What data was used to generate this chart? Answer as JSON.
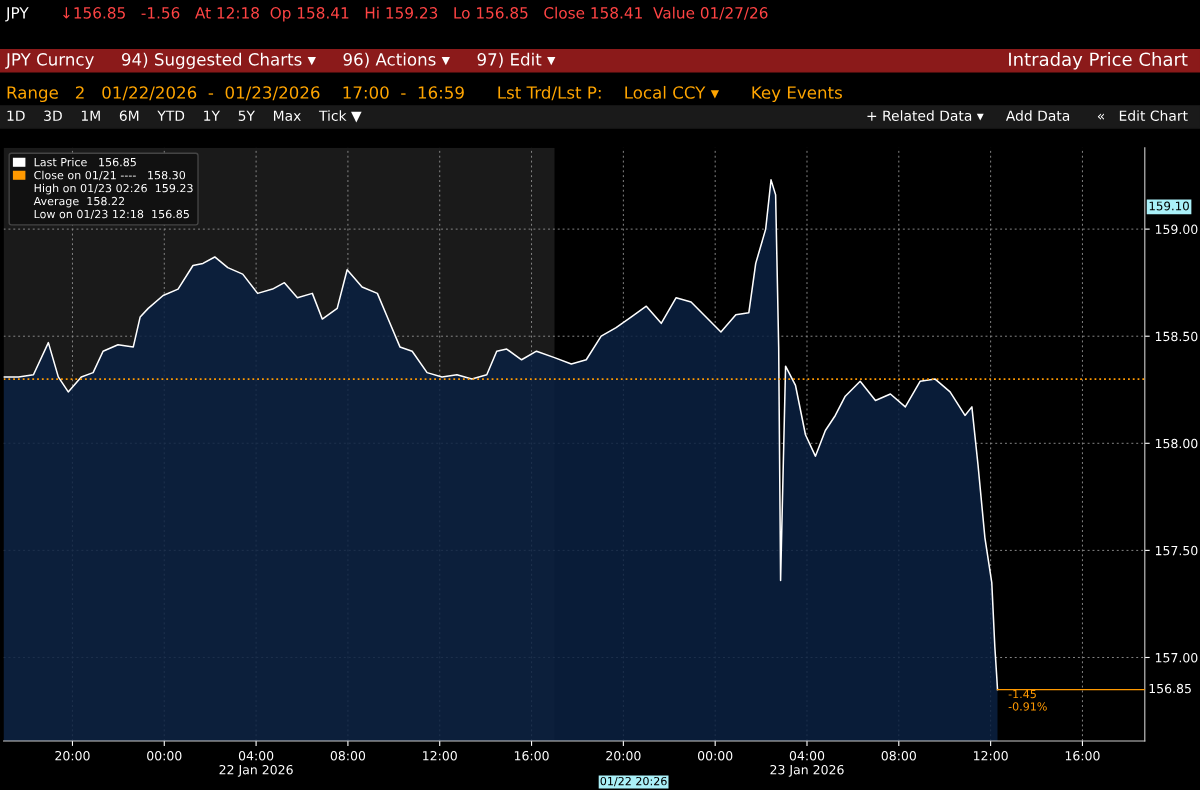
{
  "chart_data": {
    "type": "area",
    "title": "JPY",
    "subtitle": "↓156.85   -1.56   At 12:18  Op 158.41   Hi 159.23   Lo 156.85   Close 158.41  Value 01/27/26",
    "x": [
      "2026-01-21T17:00",
      "2026-01-21T17:39",
      "2026-01-21T18:18",
      "2026-01-21T18:57",
      "2026-01-21T19:23",
      "2026-01-21T19:49",
      "2026-01-21T20:23",
      "2026-01-21T20:54",
      "2026-01-21T21:20",
      "2026-01-21T21:59",
      "2026-01-21T22:39",
      "2026-01-21T22:57",
      "2026-01-21T23:18",
      "2026-01-21T23:57",
      "2026-01-22T00:36",
      "2026-01-22T01:15",
      "2026-01-22T01:41",
      "2026-01-22T02:12",
      "2026-01-22T02:46",
      "2026-01-22T03:25",
      "2026-01-22T04:04",
      "2026-01-22T04:43",
      "2026-01-22T05:14",
      "2026-01-22T05:48",
      "2026-01-22T06:27",
      "2026-01-22T06:53",
      "2026-01-22T07:32",
      "2026-01-22T07:58",
      "2026-01-22T08:37",
      "2026-01-22T09:17",
      "2026-01-22T09:43",
      "2026-01-22T10:16",
      "2026-01-22T10:48",
      "2026-01-22T11:27",
      "2026-01-22T12:06",
      "2026-01-22T12:45",
      "2026-01-22T13:24",
      "2026-01-22T14:03",
      "2026-01-22T14:29",
      "2026-01-22T14:55",
      "2026-01-22T15:34",
      "2026-01-22T16:13",
      "2026-01-22T17:00",
      "2026-01-22T17:44",
      "2026-01-22T18:23",
      "2026-01-22T19:02",
      "2026-01-22T19:41",
      "2026-01-22T20:21",
      "2026-01-22T21:00",
      "2026-01-22T21:39",
      "2026-01-22T22:18",
      "2026-01-22T22:57",
      "2026-01-22T23:36",
      "2026-01-23T00:15",
      "2026-01-23T00:54",
      "2026-01-23T01:28",
      "2026-01-23T01:46",
      "2026-01-23T02:12",
      "2026-01-23T02:26",
      "2026-01-23T02:38",
      "2026-01-23T02:46",
      "2026-01-23T02:51",
      "2026-01-23T03:04",
      "2026-01-23T03:30",
      "2026-01-23T03:56",
      "2026-01-23T04:22",
      "2026-01-23T04:48",
      "2026-01-23T05:14",
      "2026-01-23T05:40",
      "2026-01-23T06:19",
      "2026-01-23T06:59",
      "2026-01-23T07:38",
      "2026-01-23T08:17",
      "2026-01-23T08:56",
      "2026-01-23T09:35",
      "2026-01-23T10:14",
      "2026-01-23T10:53",
      "2026-01-23T11:11",
      "2026-01-23T11:27",
      "2026-01-23T11:45",
      "2026-01-23T12:03",
      "2026-01-23T12:11",
      "2026-01-23T12:16",
      "2026-01-23T12:18"
    ],
    "series": [
      {
        "name": "Last Price   156.85",
        "color": "#ffffff",
        "values": [
          158.31,
          158.31,
          158.32,
          158.47,
          158.31,
          158.24,
          158.31,
          158.33,
          158.43,
          158.46,
          158.45,
          158.59,
          158.63,
          158.69,
          158.72,
          158.83,
          158.84,
          158.87,
          158.82,
          158.79,
          158.7,
          158.72,
          158.75,
          158.68,
          158.7,
          158.58,
          158.63,
          158.81,
          158.73,
          158.7,
          158.59,
          158.45,
          158.43,
          158.33,
          158.31,
          158.32,
          158.3,
          158.32,
          158.43,
          158.44,
          158.39,
          158.43,
          158.4,
          158.37,
          158.39,
          158.5,
          158.54,
          158.59,
          158.64,
          158.56,
          158.68,
          158.66,
          158.59,
          158.52,
          158.6,
          158.61,
          158.84,
          159.0,
          159.23,
          159.16,
          158.45,
          157.36,
          158.36,
          158.27,
          158.04,
          157.94,
          158.06,
          158.13,
          158.22,
          158.29,
          158.2,
          158.23,
          158.17,
          158.29,
          158.3,
          158.24,
          158.13,
          158.17,
          157.9,
          157.56,
          157.35,
          157.05,
          156.91,
          156.85
        ]
      }
    ],
    "xlim": [
      "2026-01-21T17:00",
      "2026-01-23T18:43"
    ],
    "xticks": [
      {
        "value": "2026-01-21T20:00",
        "label": "20:00"
      },
      {
        "value": "2026-01-22T00:00",
        "label": "00:00"
      },
      {
        "value": "2026-01-22T04:00",
        "label": "04:00\n22 Jan 2026"
      },
      {
        "value": "2026-01-22T08:00",
        "label": "08:00"
      },
      {
        "value": "2026-01-22T12:00",
        "label": "12:00"
      },
      {
        "value": "2026-01-22T16:00",
        "label": "16:00"
      },
      {
        "value": "2026-01-22T20:00",
        "label": "20:00"
      },
      {
        "value": "2026-01-23T00:00",
        "label": "00:00"
      },
      {
        "value": "2026-01-23T04:00",
        "label": "04:00\n23 Jan 2026"
      },
      {
        "value": "2026-01-23T08:00",
        "label": "08:00"
      },
      {
        "value": "2026-01-23T12:00",
        "label": "12:00"
      },
      {
        "value": "2026-01-23T16:00",
        "label": "16:00"
      }
    ],
    "ylim": [
      156.61,
      159.38
    ],
    "yticks": [
      {
        "value": 157,
        "label": "157.00"
      },
      {
        "value": 157.5,
        "label": "157.50"
      },
      {
        "value": 158,
        "label": "158.00"
      },
      {
        "value": 158.5,
        "label": "158.50"
      },
      {
        "value": 159,
        "label": "159.00"
      }
    ],
    "ref_lines": [
      {
        "axis": "y",
        "value": 158.3,
        "label": "Close on 01/21 ----   158.30",
        "color": "#ff9900",
        "line_style": "dotted"
      },
      {
        "axis": "y",
        "value": 156.85,
        "label": "156.85",
        "color": "#ff9900",
        "line_style": "solid"
      }
    ],
    "bands": [
      {
        "axis": "x",
        "from": "2026-01-21T17:00",
        "to": "2026-01-22T17:00",
        "color": "#1a1a1a"
      }
    ],
    "annotations": [
      "JPY Curncy     94) Suggested Charts ▾     96) Actions ▾     97) Edit ▾",
      "Range   2   01/22/2026  -  01/23/2026    17:00  -  16:59      Lst Trd/Lst P:    Local CCY ▾      Key Events",
      "1D    3D    1M    6M    YTD    1Y    5Y    Max    Tick ▼",
      "High on 01/23 02:26  159.23",
      "Average  158.22",
      "Low on 01/23 12:18  156.85",
      "Intraday Price Chart",
      "+ Related Data ▾     Add Data      «   Edit Chart",
      "01/22 20:26",
      "159.10",
      {
        "text": "-1.45\n-0.91%",
        "x": "2026-01-23T12:18",
        "y": 156.85
      }
    ],
    "grid": true,
    "legend": "top left"
  }
}
